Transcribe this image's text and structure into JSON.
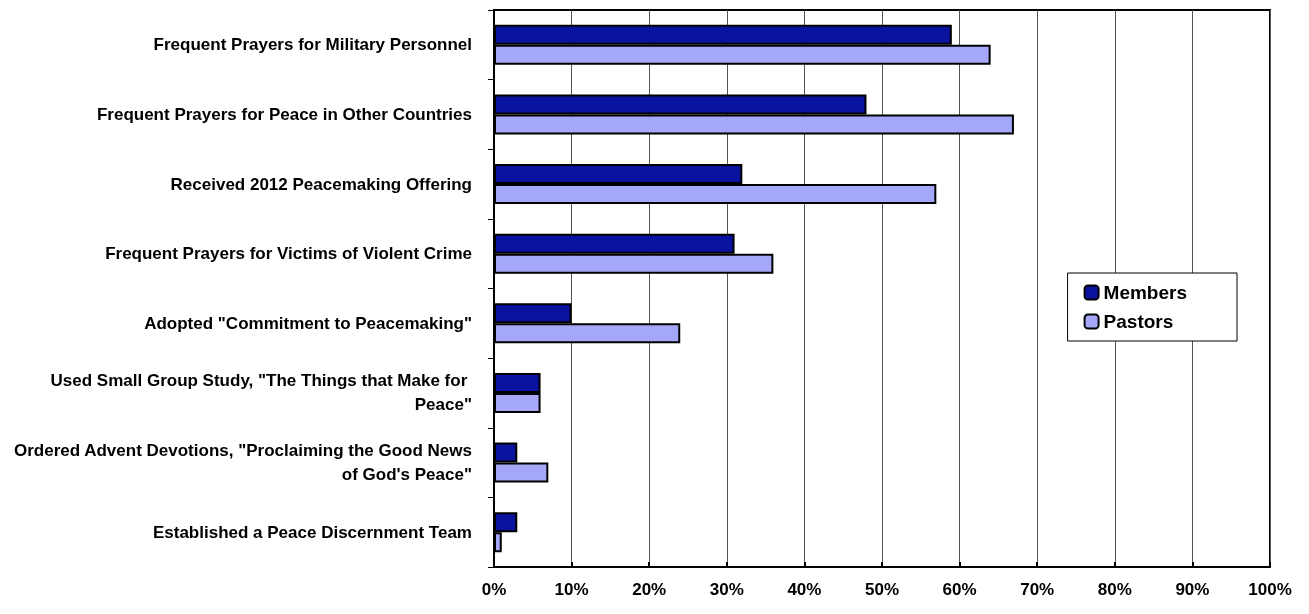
{
  "chart_data": {
    "type": "bar",
    "orientation": "horizontal",
    "categories": [
      "Frequent Prayers for Military Personnel",
      "Frequent Prayers for Peace in Other Countries",
      "Received 2012 Peacemaking Offering",
      "Frequent Prayers for Victims of Violent Crime",
      "Adopted \"Commitment to Peacemaking\"",
      "Used Small Group Study, \"The Things that Make for Peace\"",
      "Ordered Advent Devotions, \"Proclaiming the Good News of God's Peace\"",
      "Established a Peace Discernment Team"
    ],
    "series": [
      {
        "name": "Members",
        "color": "#0a12a0",
        "values": [
          59,
          48,
          32,
          31,
          10,
          6,
          3,
          3
        ]
      },
      {
        "name": "Pastors",
        "color": "#a5a8f8",
        "values": [
          64,
          67,
          57,
          36,
          24,
          6,
          7,
          1
        ]
      }
    ],
    "xlim": [
      0,
      100
    ],
    "xticks": [
      {
        "value": 0,
        "label": "0%"
      },
      {
        "value": 10,
        "label": "10%"
      },
      {
        "value": 20,
        "label": "20%"
      },
      {
        "value": 30,
        "label": "30%"
      },
      {
        "value": 40,
        "label": "40%"
      },
      {
        "value": 50,
        "label": "50%"
      },
      {
        "value": 60,
        "label": "60%"
      },
      {
        "value": 70,
        "label": "70%"
      },
      {
        "value": 80,
        "label": "80%"
      },
      {
        "value": 90,
        "label": "90%"
      },
      {
        "value": 100,
        "label": "100%"
      }
    ],
    "grid": "x",
    "legend": "right"
  }
}
